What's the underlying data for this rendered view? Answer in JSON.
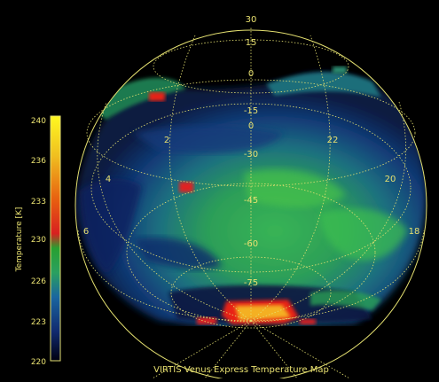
{
  "colorbar": {
    "axis_label": "Temperature [K]",
    "tick_labels": [
      "240",
      "236",
      "233",
      "230",
      "226",
      "223",
      "220"
    ]
  },
  "grid_labels": {
    "latitudes": [
      "30",
      "15",
      "0",
      "-15",
      "0",
      "-30",
      "-45",
      "-60",
      "-75"
    ],
    "local_times": [
      "2",
      "22",
      "4",
      "20",
      "6",
      "18"
    ]
  },
  "caption": "VIRTIS Venus Express Temperature Map",
  "colors": {
    "background": "#000000",
    "grid": "#e4e070",
    "label": "#e8e070"
  }
}
